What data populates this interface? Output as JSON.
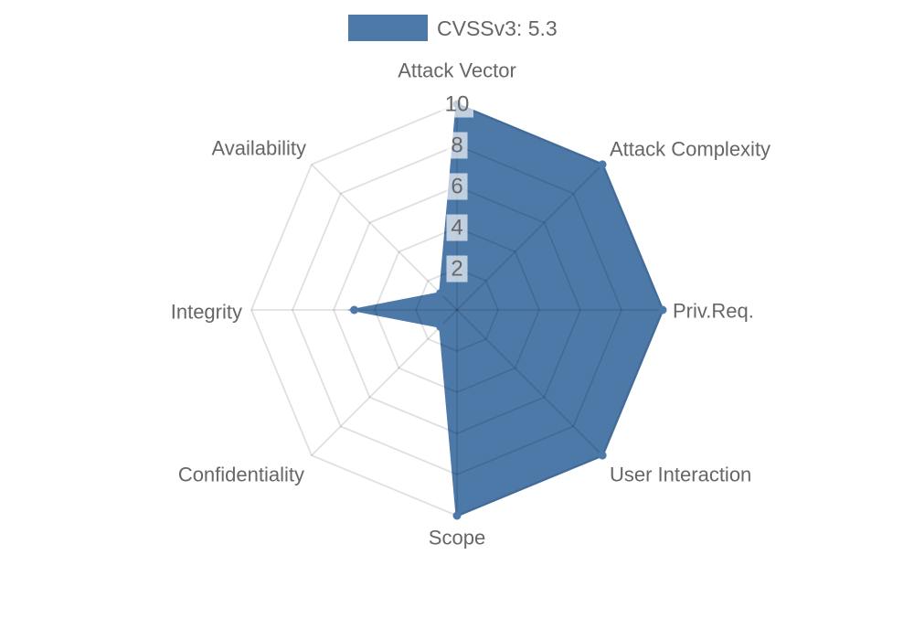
{
  "chart_data": {
    "type": "radar",
    "legend": {
      "label": "CVSSv3: 5.3",
      "position": "top"
    },
    "axes": [
      "Attack Vector",
      "Attack Complexity",
      "Priv.Req.",
      "User Interaction",
      "Scope",
      "Confidentiality",
      "Integrity",
      "Availability"
    ],
    "series": [
      {
        "name": "CVSSv3: 5.3",
        "values": [
          10,
          10,
          10,
          10,
          10,
          0,
          5,
          0
        ]
      }
    ],
    "scale": {
      "min": 0,
      "max": 10,
      "tick_step": 2,
      "ticks": [
        2,
        4,
        6,
        8,
        10
      ],
      "grid": true
    },
    "colors": {
      "fill": "#4d79a9",
      "stroke": "#4d79a9",
      "grid": "rgba(0,0,0,0.12)",
      "tick_text": "#666666",
      "tick_backdrop": "rgba(255,255,255,0.65)",
      "label_text": "#666666"
    }
  }
}
